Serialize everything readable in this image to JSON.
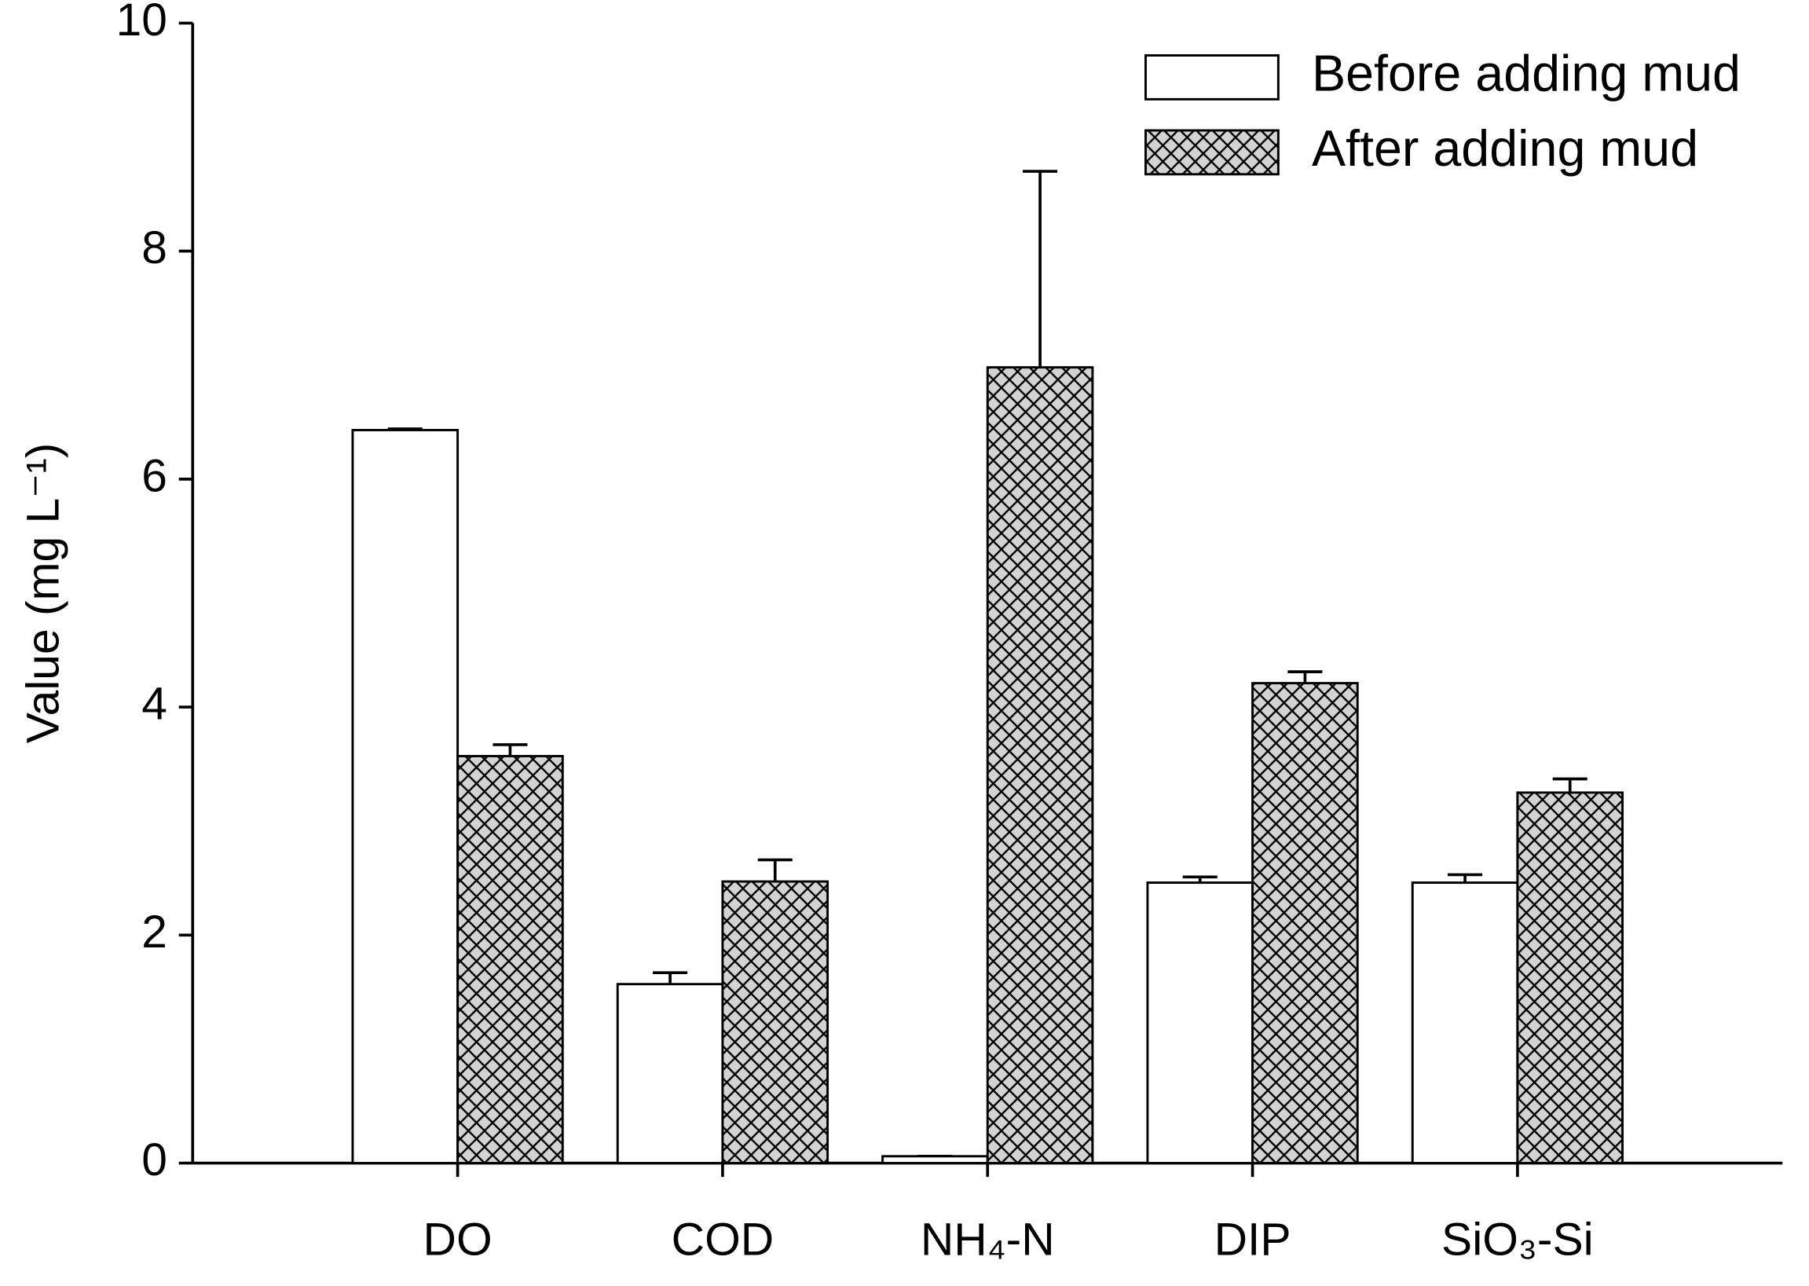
{
  "chart_data": {
    "type": "bar",
    "y_label": "Value (mg L⁻¹)",
    "categories": [
      "DO",
      "COD",
      "NH₄-N",
      "DIP",
      "SiO₃-Si"
    ],
    "series": [
      {
        "name": "Before adding mud",
        "color": "#ffffff",
        "hatch": false,
        "values": [
          6.43,
          1.57,
          0.06,
          2.46,
          2.46
        ],
        "errors": [
          0.01,
          0.1,
          0,
          0.05,
          0.07
        ]
      },
      {
        "name": "After adding mud",
        "color": "#d3d3d3",
        "hatch": true,
        "values": [
          3.57,
          2.47,
          6.98,
          4.21,
          3.25
        ],
        "errors": [
          0.1,
          0.19,
          1.72,
          0.1,
          0.12
        ]
      }
    ],
    "ylim": [
      0,
      10
    ],
    "yticks": [
      0,
      2,
      4,
      6,
      8,
      10
    ],
    "grid": false,
    "legend": "top-right"
  }
}
